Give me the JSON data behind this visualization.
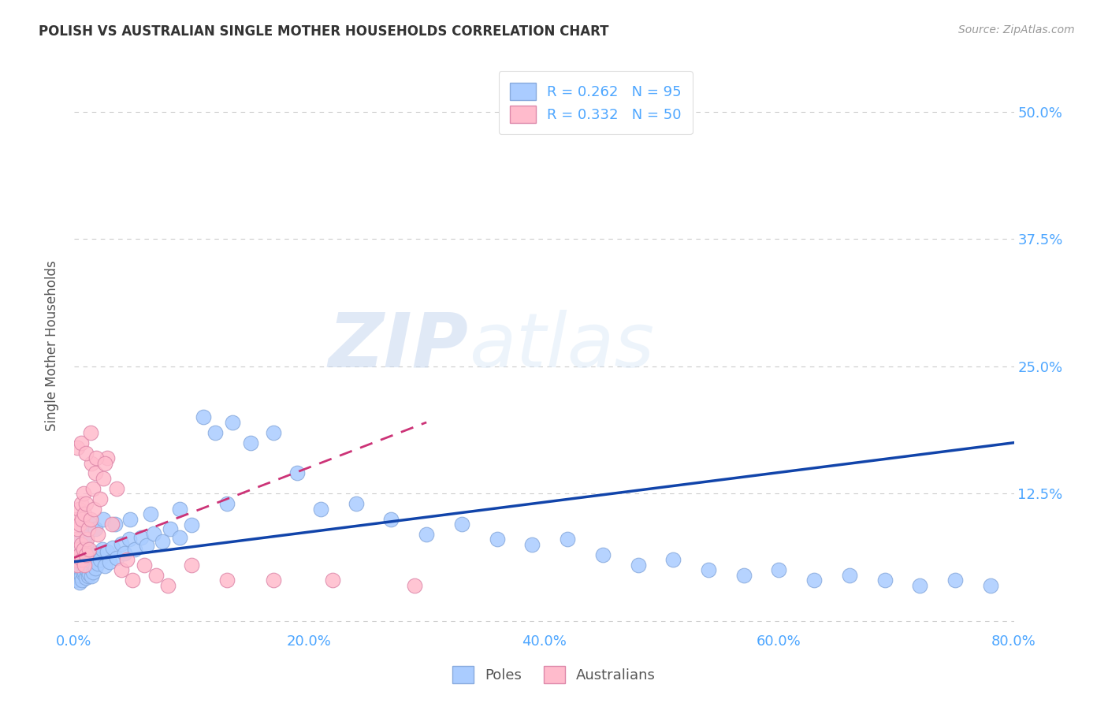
{
  "title": "POLISH VS AUSTRALIAN SINGLE MOTHER HOUSEHOLDS CORRELATION CHART",
  "source": "Source: ZipAtlas.com",
  "tick_color": "#4da6ff",
  "ylabel": "Single Mother Households",
  "xlim": [
    0.0,
    0.8
  ],
  "ylim": [
    -0.01,
    0.55
  ],
  "xticks": [
    0.0,
    0.2,
    0.4,
    0.6,
    0.8
  ],
  "yticks": [
    0.0,
    0.125,
    0.25,
    0.375,
    0.5
  ],
  "ytick_labels": [
    "",
    "12.5%",
    "25.0%",
    "37.5%",
    "50.0%"
  ],
  "xtick_labels": [
    "0.0%",
    "20.0%",
    "40.0%",
    "60.0%",
    "80.0%"
  ],
  "grid_color": "#cccccc",
  "background_color": "#ffffff",
  "poles_color": "#aaccff",
  "poles_edge_color": "#88aadd",
  "australians_color": "#ffbbcc",
  "australians_edge_color": "#dd88aa",
  "poles_R": 0.262,
  "poles_N": 95,
  "australians_R": 0.332,
  "australians_N": 50,
  "legend_poles_label": "R = 0.262   N = 95",
  "legend_australians_label": "R = 0.332   N = 50",
  "poles_trendline_color": "#1144aa",
  "australians_trendline_color": "#cc3377",
  "watermark_zip": "ZIP",
  "watermark_atlas": "atlas",
  "bottom_legend_poles": "Poles",
  "bottom_legend_australians": "Australians",
  "poles_x": [
    0.001,
    0.002,
    0.002,
    0.003,
    0.003,
    0.003,
    0.004,
    0.004,
    0.004,
    0.005,
    0.005,
    0.005,
    0.006,
    0.006,
    0.006,
    0.007,
    0.007,
    0.007,
    0.008,
    0.008,
    0.008,
    0.009,
    0.009,
    0.01,
    0.01,
    0.01,
    0.011,
    0.011,
    0.012,
    0.012,
    0.013,
    0.013,
    0.014,
    0.015,
    0.015,
    0.016,
    0.017,
    0.018,
    0.019,
    0.02,
    0.022,
    0.024,
    0.026,
    0.028,
    0.03,
    0.033,
    0.036,
    0.04,
    0.043,
    0.047,
    0.052,
    0.057,
    0.062,
    0.068,
    0.075,
    0.082,
    0.09,
    0.1,
    0.11,
    0.12,
    0.135,
    0.15,
    0.17,
    0.19,
    0.21,
    0.24,
    0.27,
    0.3,
    0.33,
    0.36,
    0.39,
    0.42,
    0.45,
    0.48,
    0.51,
    0.54,
    0.57,
    0.6,
    0.63,
    0.66,
    0.69,
    0.72,
    0.75,
    0.78,
    0.005,
    0.008,
    0.011,
    0.014,
    0.018,
    0.025,
    0.035,
    0.048,
    0.065,
    0.09,
    0.13
  ],
  "poles_y": [
    0.055,
    0.045,
    0.065,
    0.04,
    0.055,
    0.07,
    0.042,
    0.058,
    0.072,
    0.038,
    0.052,
    0.068,
    0.044,
    0.06,
    0.075,
    0.04,
    0.056,
    0.071,
    0.046,
    0.062,
    0.077,
    0.048,
    0.064,
    0.042,
    0.058,
    0.074,
    0.05,
    0.066,
    0.044,
    0.06,
    0.046,
    0.062,
    0.052,
    0.044,
    0.058,
    0.048,
    0.062,
    0.052,
    0.066,
    0.056,
    0.06,
    0.07,
    0.054,
    0.068,
    0.058,
    0.072,
    0.062,
    0.076,
    0.066,
    0.08,
    0.07,
    0.082,
    0.074,
    0.086,
    0.078,
    0.09,
    0.082,
    0.094,
    0.2,
    0.185,
    0.195,
    0.175,
    0.185,
    0.145,
    0.11,
    0.115,
    0.1,
    0.085,
    0.095,
    0.08,
    0.075,
    0.08,
    0.065,
    0.055,
    0.06,
    0.05,
    0.045,
    0.05,
    0.04,
    0.045,
    0.04,
    0.035,
    0.04,
    0.035,
    0.08,
    0.09,
    0.085,
    0.095,
    0.09,
    0.1,
    0.095,
    0.1,
    0.105,
    0.11,
    0.115
  ],
  "australians_x": [
    0.001,
    0.002,
    0.002,
    0.003,
    0.003,
    0.004,
    0.004,
    0.005,
    0.005,
    0.006,
    0.006,
    0.007,
    0.007,
    0.008,
    0.008,
    0.009,
    0.009,
    0.01,
    0.01,
    0.011,
    0.012,
    0.013,
    0.014,
    0.015,
    0.016,
    0.017,
    0.018,
    0.02,
    0.022,
    0.025,
    0.028,
    0.032,
    0.036,
    0.04,
    0.045,
    0.05,
    0.06,
    0.07,
    0.08,
    0.1,
    0.13,
    0.17,
    0.22,
    0.29,
    0.003,
    0.006,
    0.01,
    0.014,
    0.019,
    0.026
  ],
  "australians_y": [
    0.06,
    0.08,
    0.1,
    0.055,
    0.09,
    0.07,
    0.11,
    0.065,
    0.095,
    0.075,
    0.115,
    0.06,
    0.1,
    0.07,
    0.125,
    0.055,
    0.105,
    0.065,
    0.115,
    0.08,
    0.09,
    0.07,
    0.1,
    0.155,
    0.13,
    0.11,
    0.145,
    0.085,
    0.12,
    0.14,
    0.16,
    0.095,
    0.13,
    0.05,
    0.06,
    0.04,
    0.055,
    0.045,
    0.035,
    0.055,
    0.04,
    0.04,
    0.04,
    0.035,
    0.17,
    0.175,
    0.165,
    0.185,
    0.16,
    0.155
  ],
  "poles_trend_x": [
    0.0,
    0.8
  ],
  "poles_trend_y": [
    0.058,
    0.175
  ],
  "australians_trend_x": [
    0.0,
    0.3
  ],
  "australians_trend_y": [
    0.062,
    0.195
  ]
}
